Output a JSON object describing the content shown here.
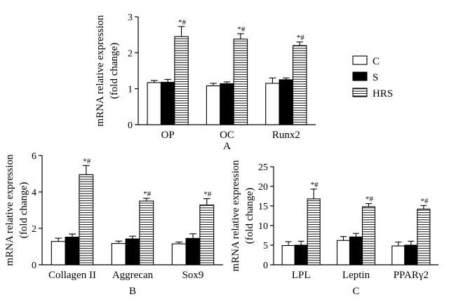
{
  "legend": {
    "items": [
      {
        "label": "C",
        "pattern": "white"
      },
      {
        "label": "S",
        "pattern": "black"
      },
      {
        "label": "HRS",
        "pattern": "hstripe"
      }
    ]
  },
  "colors": {
    "axis": "#000000",
    "white_fill": "#ffffff",
    "black_fill": "#000000",
    "stripe": "#000000"
  },
  "chart_data": [
    {
      "type": "bar",
      "panel_label": "A",
      "ylabel": "mRNA relative expression (fold change)",
      "ylabel_lines": [
        "mRNA relative expression",
        "(fold change)"
      ],
      "ylim": [
        0,
        3
      ],
      "yticks": [
        0,
        1,
        2,
        3
      ],
      "categories": [
        "OP",
        "OC",
        "Runx2"
      ],
      "series": [
        {
          "name": "C",
          "values": [
            1.17,
            1.08,
            1.15
          ],
          "errors": [
            0.06,
            0.07,
            0.15
          ]
        },
        {
          "name": "S",
          "values": [
            1.18,
            1.14,
            1.25
          ],
          "errors": [
            0.08,
            0.05,
            0.05
          ]
        },
        {
          "name": "HRS",
          "values": [
            2.45,
            2.38,
            2.2
          ],
          "errors": [
            0.28,
            0.15,
            0.1
          ]
        }
      ],
      "annotations": [
        "*#",
        "*#",
        "*#"
      ]
    },
    {
      "type": "bar",
      "panel_label": "B",
      "ylabel": "mRNA relative expression (fold change)",
      "ylabel_lines": [
        "mRNA relative expression",
        "(fold change)"
      ],
      "ylim": [
        0,
        6
      ],
      "yticks": [
        0,
        2,
        4,
        6
      ],
      "categories": [
        "Collagen II",
        "Aggrecan",
        "Sox9"
      ],
      "series": [
        {
          "name": "C",
          "values": [
            1.28,
            1.17,
            1.15
          ],
          "errors": [
            0.18,
            0.13,
            0.1
          ]
        },
        {
          "name": "S",
          "values": [
            1.52,
            1.42,
            1.45
          ],
          "errors": [
            0.17,
            0.15,
            0.25
          ]
        },
        {
          "name": "HRS",
          "values": [
            4.95,
            3.5,
            3.28
          ],
          "errors": [
            0.5,
            0.15,
            0.35
          ]
        }
      ],
      "annotations": [
        "*#",
        "*#",
        "*#"
      ]
    },
    {
      "type": "bar",
      "panel_label": "C",
      "ylabel": "mRNA relative expression (fold change)",
      "ylabel_lines": [
        "mRNA relative expression",
        "(fold change)"
      ],
      "ylim": [
        0,
        25
      ],
      "yticks": [
        0,
        5,
        10,
        15,
        20,
        25
      ],
      "categories": [
        "LPL",
        "Leptin",
        "PPARγ2"
      ],
      "series": [
        {
          "name": "C",
          "values": [
            4.9,
            6.2,
            4.8
          ],
          "errors": [
            1.0,
            1.0,
            1.0
          ]
        },
        {
          "name": "S",
          "values": [
            5.0,
            7.1,
            5.0
          ],
          "errors": [
            1.0,
            0.9,
            1.0
          ]
        },
        {
          "name": "HRS",
          "values": [
            16.8,
            14.8,
            14.2
          ],
          "errors": [
            2.5,
            0.8,
            0.9
          ]
        }
      ],
      "annotations": [
        "*#",
        "*#",
        "*#"
      ]
    }
  ]
}
